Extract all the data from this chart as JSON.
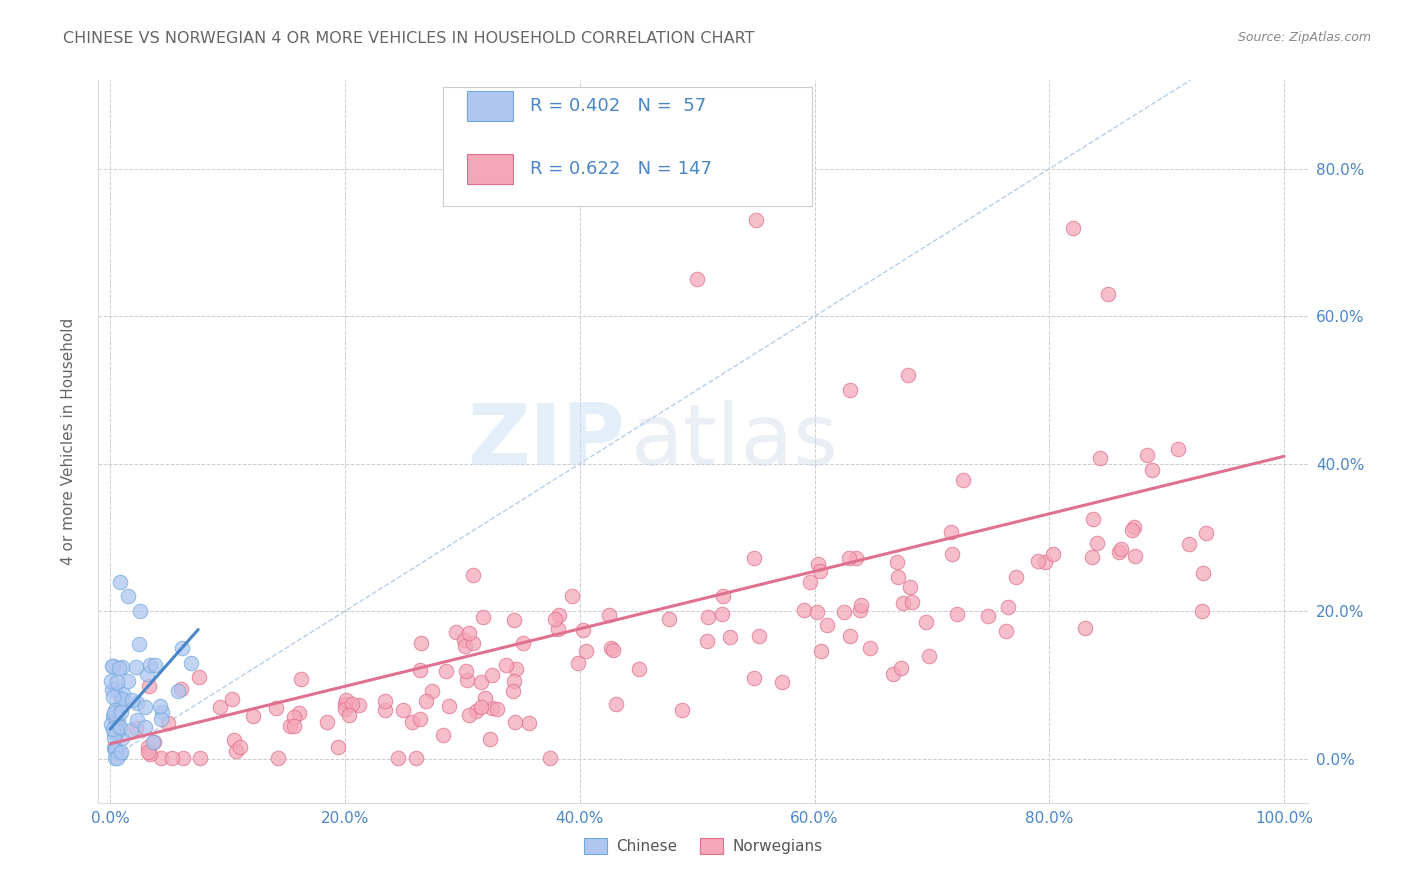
{
  "title": "CHINESE VS NORWEGIAN 4 OR MORE VEHICLES IN HOUSEHOLD CORRELATION CHART",
  "source": "Source: ZipAtlas.com",
  "ylabel": "4 or more Vehicles in Household",
  "xlim": [
    -0.01,
    1.02
  ],
  "ylim": [
    -0.06,
    0.92
  ],
  "xtick_vals": [
    0.0,
    0.2,
    0.4,
    0.6,
    0.8,
    1.0
  ],
  "xtick_labels": [
    "0.0%",
    "20.0%",
    "40.0%",
    "60.0%",
    "80.0%",
    "100.0%"
  ],
  "ytick_vals": [
    0.0,
    0.2,
    0.4,
    0.6,
    0.8
  ],
  "ytick_labels": [
    "0.0%",
    "20.0%",
    "40.0%",
    "60.0%",
    "80.0%"
  ],
  "chinese_color": "#aec6f0",
  "norwegian_color": "#f4a7b9",
  "chinese_edge": "#6fa8dc",
  "norwegian_edge": "#e06c8a",
  "trend_chinese_color": "#4a86c8",
  "trend_norwegian_color": "#e07090",
  "diagonal_color": "#b0c8e8",
  "legend_R_chinese": "0.402",
  "legend_N_chinese": "57",
  "legend_R_norwegian": "0.622",
  "legend_N_norwegian": "147",
  "watermark_zip": "ZIP",
  "watermark_atlas": "atlas",
  "background_color": "#ffffff",
  "grid_color": "#cccccc",
  "title_color": "#666666",
  "axis_label_color": "#666666",
  "tick_label_color": "#4a86c8",
  "source_color": "#888888"
}
